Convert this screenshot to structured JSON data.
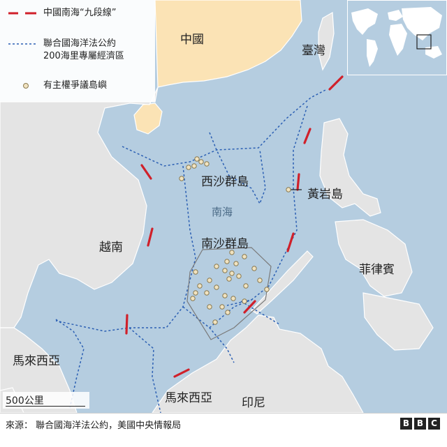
{
  "legend": {
    "nine_dash": "中國南海“九段線”",
    "eez_line1": "聯合國海洋法公約",
    "eez_line2": "200海里專屬經濟區",
    "disputed": "有主權爭議島嶼"
  },
  "labels": {
    "china": "中國",
    "taiwan": "臺灣",
    "paracel": "西沙群島",
    "south_sea": "南海",
    "spratly": "南沙群島",
    "scarborough": "黃岩島",
    "vietnam": "越南",
    "philippines": "菲律賓",
    "malaysia_west": "馬來西亞",
    "malaysia_borneo": "馬來西亞",
    "indonesia": "印尼"
  },
  "scale": {
    "label": "500公里"
  },
  "footer": {
    "source": "來源： 聯合國海洋法公約，美國中央情報局",
    "brand_letters": [
      "B",
      "B",
      "C"
    ]
  },
  "colors": {
    "sea": "#b5cde0",
    "land": "#e4e4e4",
    "china_land": "#fbe3b5",
    "nine_dash": "#d0202a",
    "eez": "#2b5fb3",
    "island_fill": "#f1e3c0",
    "island_stroke": "#8a7a50"
  }
}
